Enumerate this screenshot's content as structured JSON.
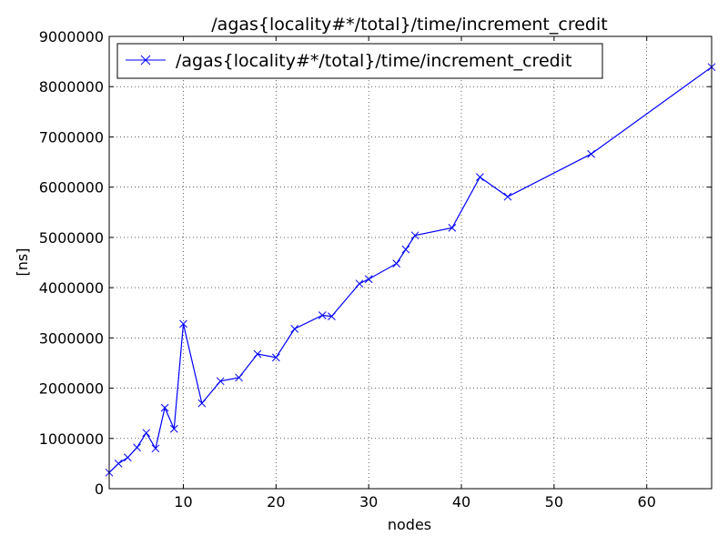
{
  "chart_data": {
    "type": "line",
    "title": "/agas{locality#*/total}/time/increment_credit",
    "xlabel": "nodes",
    "ylabel": "[ns]",
    "xlim": [
      2,
      67
    ],
    "ylim": [
      0,
      9000000
    ],
    "x_ticks": [
      "10",
      "20",
      "30",
      "40",
      "50",
      "60"
    ],
    "x_tick_values": [
      10,
      20,
      30,
      40,
      50,
      60
    ],
    "y_ticks": [
      "0",
      "1000000",
      "2000000",
      "3000000",
      "4000000",
      "5000000",
      "6000000",
      "7000000",
      "8000000",
      "9000000"
    ],
    "y_tick_values": [
      0,
      1000000,
      2000000,
      3000000,
      4000000,
      5000000,
      6000000,
      7000000,
      8000000,
      9000000
    ],
    "grid": true,
    "legend_position": "top-left",
    "series": [
      {
        "name": "/agas{locality#*/total}/time/increment_credit",
        "color": "#0000ff",
        "marker": "x",
        "x": [
          2,
          3,
          4,
          5,
          6,
          7,
          8,
          9,
          10,
          12,
          14,
          16,
          18,
          20,
          22,
          25,
          26,
          29,
          30,
          33,
          34,
          35,
          39,
          42,
          45,
          54,
          67
        ],
        "y": [
          320000,
          500000,
          620000,
          820000,
          1110000,
          800000,
          1610000,
          1190000,
          3280000,
          1700000,
          2140000,
          2210000,
          2680000,
          2610000,
          3180000,
          3450000,
          3430000,
          4080000,
          4170000,
          4480000,
          4760000,
          5040000,
          5190000,
          6200000,
          5810000,
          6660000,
          8390000
        ]
      }
    ]
  }
}
